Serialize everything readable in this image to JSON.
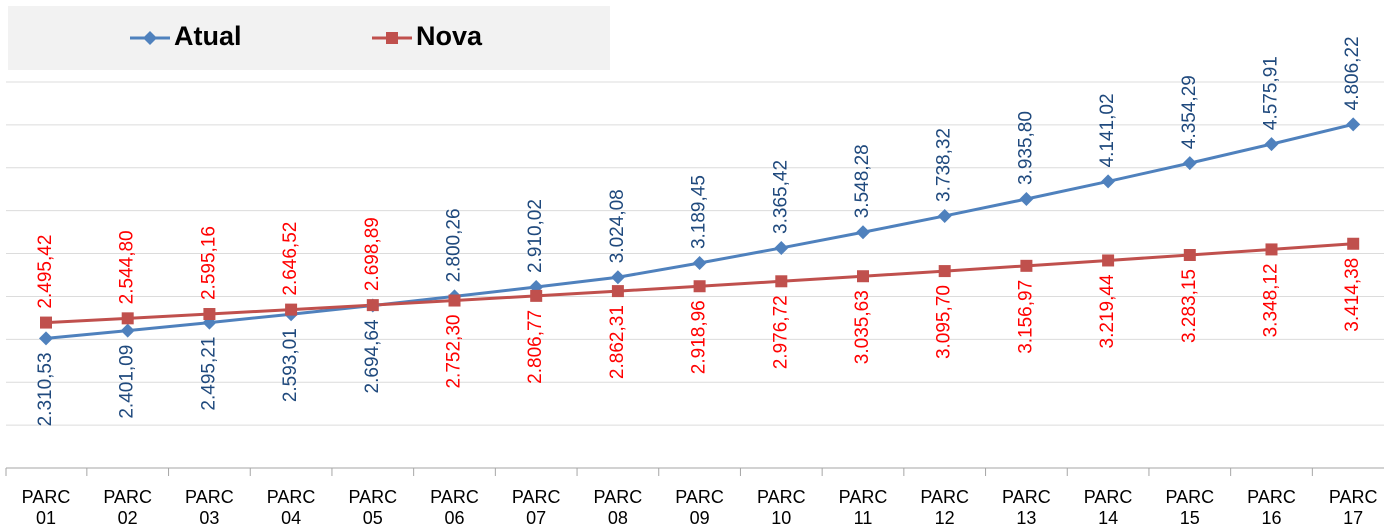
{
  "chart_data": {
    "type": "line",
    "categories": [
      "PARC 01",
      "PARC 02",
      "PARC 03",
      "PARC 04",
      "PARC 05",
      "PARC 06",
      "PARC 07",
      "PARC 08",
      "PARC 09",
      "PARC 10",
      "PARC 11",
      "PARC 12",
      "PARC 13",
      "PARC 14",
      "PARC 15",
      "PARC 16",
      "PARC 17"
    ],
    "series": [
      {
        "name": "Atual",
        "color": "#4f81bd",
        "label_color": "#1f497d",
        "marker": "diamond",
        "values": [
          2310.53,
          2401.09,
          2495.21,
          2593.01,
          2694.64,
          2800.26,
          2910.02,
          3024.08,
          3189.45,
          3365.42,
          3548.28,
          3738.32,
          3935.8,
          4141.02,
          4354.29,
          4575.91,
          4806.22
        ],
        "value_labels": [
          "2.310,53",
          "2.401,09",
          "2.495,21",
          "2.593,01",
          "2.694,64",
          "2.800,26",
          "2.910,02",
          "3.024,08",
          "3.189,45",
          "3.365,42",
          "3.548,28",
          "3.738,32",
          "3.935,80",
          "4.141,02",
          "4.354,29",
          "4.575,91",
          "4.806,22"
        ]
      },
      {
        "name": "Nova",
        "color": "#c0504d",
        "label_color": "#ff0000",
        "marker": "square",
        "values": [
          2495.42,
          2544.8,
          2595.16,
          2646.52,
          2698.89,
          2752.3,
          2806.77,
          2862.31,
          2918.96,
          2976.72,
          3035.63,
          3095.7,
          3156.97,
          3219.44,
          3283.15,
          3348.12,
          3414.38
        ],
        "value_labels": [
          "2.495,42",
          "2.544,80",
          "2.595,16",
          "2.646,52",
          "2.698,89",
          "2.752,30",
          "2.806,77",
          "2.862,31",
          "2.918,96",
          "2.976,72",
          "3.035,63",
          "3.095,70",
          "3.156,97",
          "3.219,44",
          "3.283,15",
          "3.348,12",
          "3.414,38"
        ]
      }
    ],
    "ylim": [
      800,
      5300
    ],
    "yticks": [
      800,
      1300,
      1800,
      2300,
      2800,
      3300,
      3800,
      4300,
      4800,
      5300
    ],
    "grid": true,
    "legend": "top-left"
  }
}
